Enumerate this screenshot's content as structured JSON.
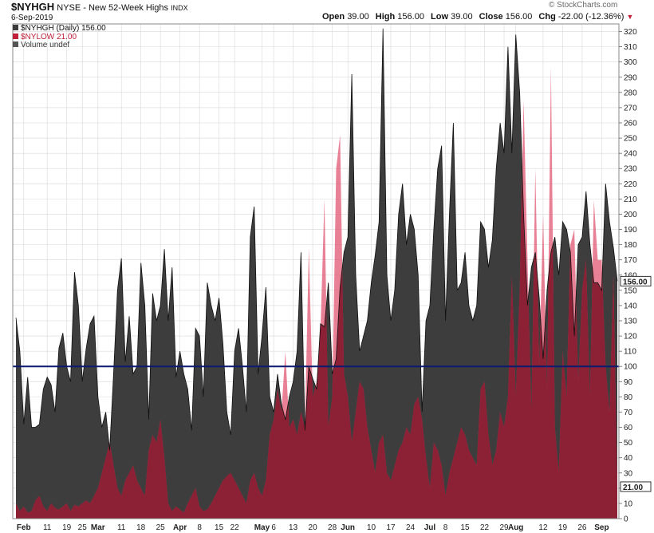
{
  "header": {
    "symbol": "$NYHGH",
    "exchange": "NYSE - New 52-Week Highs",
    "type": "INDX",
    "date": "6-Sep-2019",
    "open_label": "Open",
    "open": "39.00",
    "high_label": "High",
    "high": "156.00",
    "low_label": "Low",
    "low": "39.00",
    "close_label": "Close",
    "close": "156.00",
    "chg_label": "Chg",
    "chg": "-22.00 (-12.36%)",
    "watermark": "© StockCharts.com"
  },
  "legend": {
    "series1": "$NYHGH (Daily) 156.00",
    "series2": "$NYLOW 21.00",
    "series3": "Volume undef"
  },
  "colors": {
    "highs_fill": "#3d3d3d",
    "lows_fill": "#e0506e",
    "overlap_fill": "#8c2136",
    "ref_line": "#0a1a6e",
    "grid": "#d8d8d8"
  },
  "chart_data": {
    "type": "area",
    "ylim": [
      0,
      325
    ],
    "yticks": [
      0,
      10,
      20,
      30,
      40,
      50,
      60,
      70,
      80,
      90,
      100,
      110,
      120,
      130,
      140,
      150,
      160,
      170,
      180,
      190,
      200,
      210,
      220,
      230,
      240,
      250,
      260,
      270,
      280,
      290,
      300,
      310,
      320
    ],
    "reference_line": 100,
    "last_values": {
      "highs": "156.00",
      "lows": "21.00"
    },
    "x_labels": [
      {
        "label": "Feb",
        "i": 2,
        "month": true
      },
      {
        "label": "11",
        "i": 8
      },
      {
        "label": "19",
        "i": 13
      },
      {
        "label": "25",
        "i": 17
      },
      {
        "label": "Mar",
        "i": 21,
        "month": true
      },
      {
        "label": "11",
        "i": 27
      },
      {
        "label": "18",
        "i": 32
      },
      {
        "label": "25",
        "i": 37
      },
      {
        "label": "Apr",
        "i": 42,
        "month": true
      },
      {
        "label": "8",
        "i": 47
      },
      {
        "label": "15",
        "i": 52
      },
      {
        "label": "22",
        "i": 56
      },
      {
        "label": "May",
        "i": 63,
        "month": true
      },
      {
        "label": "6",
        "i": 66
      },
      {
        "label": "13",
        "i": 71
      },
      {
        "label": "20",
        "i": 76
      },
      {
        "label": "28",
        "i": 81
      },
      {
        "label": "Jun",
        "i": 85,
        "month": true
      },
      {
        "label": "10",
        "i": 91
      },
      {
        "label": "17",
        "i": 96
      },
      {
        "label": "24",
        "i": 101
      },
      {
        "label": "Jul",
        "i": 106,
        "month": true
      },
      {
        "label": "8",
        "i": 110
      },
      {
        "label": "15",
        "i": 115
      },
      {
        "label": "22",
        "i": 120
      },
      {
        "label": "29",
        "i": 125
      },
      {
        "label": "Aug",
        "i": 128,
        "month": true
      },
      {
        "label": "12",
        "i": 135
      },
      {
        "label": "19",
        "i": 140
      },
      {
        "label": "26",
        "i": 145
      },
      {
        "label": "Sep",
        "i": 150,
        "month": true
      }
    ],
    "series": [
      {
        "name": "$NYHGH",
        "values": [
          132,
          110,
          62,
          93,
          60,
          60,
          62,
          85,
          93,
          88,
          70,
          112,
          122,
          100,
          90,
          162,
          140,
          90,
          112,
          128,
          133,
          80,
          60,
          70,
          45,
          95,
          150,
          171,
          103,
          133,
          95,
          100,
          168,
          140,
          65,
          148,
          130,
          140,
          177,
          130,
          165,
          93,
          110,
          95,
          85,
          58,
          125,
          120,
          80,
          155,
          140,
          130,
          145,
          115,
          70,
          55,
          110,
          125,
          100,
          70,
          185,
          205,
          95,
          120,
          152,
          80,
          70,
          95,
          75,
          65,
          80,
          90,
          110,
          175,
          58,
          100,
          92,
          85,
          128,
          126,
          155,
          95,
          105,
          152,
          175,
          185,
          292,
          160,
          110,
          120,
          130,
          155,
          173,
          195,
          322,
          160,
          130,
          150,
          200,
          220,
          180,
          200,
          190,
          160,
          70,
          130,
          140,
          190,
          230,
          245,
          130,
          200,
          260,
          150,
          155,
          175,
          140,
          130,
          140,
          195,
          190,
          165,
          183,
          230,
          260,
          240,
          310,
          240,
          318,
          280,
          200,
          140,
          165,
          175,
          145,
          105,
          150,
          175,
          185,
          160,
          195,
          190,
          175,
          120,
          180,
          185,
          215,
          180,
          155,
          155,
          150,
          220,
          195,
          178,
          156
        ]
      },
      {
        "name": "$NYLOW",
        "values": [
          10,
          5,
          8,
          4,
          5,
          12,
          15,
          8,
          5,
          10,
          7,
          6,
          8,
          10,
          5,
          9,
          8,
          10,
          12,
          10,
          15,
          20,
          30,
          40,
          50,
          35,
          20,
          15,
          25,
          30,
          35,
          25,
          20,
          15,
          45,
          55,
          50,
          65,
          40,
          10,
          5,
          8,
          6,
          4,
          10,
          15,
          20,
          8,
          5,
          6,
          10,
          15,
          20,
          25,
          28,
          30,
          25,
          20,
          15,
          10,
          25,
          30,
          20,
          15,
          25,
          55,
          65,
          85,
          70,
          110,
          60,
          65,
          55,
          70,
          60,
          178,
          80,
          90,
          125,
          210,
          60,
          80,
          230,
          252,
          95,
          80,
          50,
          70,
          90,
          85,
          60,
          45,
          30,
          50,
          55,
          30,
          25,
          35,
          45,
          50,
          60,
          55,
          75,
          80,
          65,
          40,
          20,
          50,
          45,
          35,
          15,
          30,
          40,
          50,
          60,
          55,
          45,
          40,
          35,
          85,
          90,
          55,
          35,
          45,
          70,
          60,
          80,
          160,
          80,
          150,
          275,
          170,
          70,
          230,
          100,
          200,
          85,
          297,
          60,
          30,
          110,
          80,
          180,
          190,
          90,
          150,
          170,
          80,
          209,
          170,
          170,
          100,
          70,
          160,
          21
        ]
      }
    ]
  }
}
